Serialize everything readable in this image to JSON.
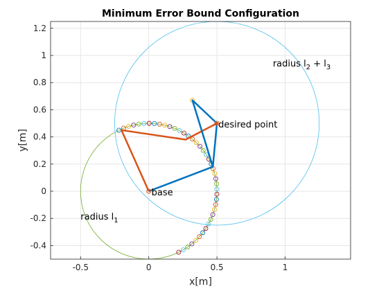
{
  "chart_data": {
    "type": "line",
    "title": "Minimum Error Bound Configuration",
    "xlabel": "x[m]",
    "ylabel": "y[m]",
    "xlim": [
      -0.72,
      1.48
    ],
    "ylim": [
      -0.5,
      1.25
    ],
    "grid": true,
    "xticks": [
      -0.5,
      0,
      0.5,
      1
    ],
    "xtick_labels": [
      "-0.5",
      "0",
      "0.5",
      "1"
    ],
    "yticks": [
      -0.4,
      -0.2,
      0,
      0.2,
      0.4,
      0.6,
      0.8,
      1,
      1.2
    ],
    "ytick_labels": [
      "-0.4",
      "-0.2",
      "0",
      "0.2",
      "0.4",
      "0.6",
      "0.8",
      "1",
      "1.2"
    ],
    "circles": [
      {
        "cx": 0,
        "cy": 0,
        "r": 0.5,
        "color": "#77ac30"
      },
      {
        "cx": 0.5,
        "cy": 0.5,
        "r": 0.75,
        "color": "#4dbeee"
      }
    ],
    "series": [
      {
        "points": [
          [
            0,
            0
          ],
          [
            -0.2,
            0.45
          ],
          [
            0.27,
            0.38
          ],
          [
            0.5,
            0.5
          ]
        ],
        "color": "#d95319"
      },
      {
        "points": [
          [
            0,
            0
          ],
          [
            0.47,
            0.18
          ],
          [
            0.5,
            0.5
          ],
          [
            0.32,
            0.67
          ],
          [
            0.47,
            0.18
          ]
        ],
        "color": "#0072bd"
      }
    ],
    "arc_markers": {
      "cx": 0,
      "cy": 0,
      "r": 0.5,
      "start_deg": 116,
      "end_deg": -64,
      "count": 42,
      "colors": [
        "#0072bd",
        "#d95319",
        "#edb120",
        "#7e2f8e",
        "#77ac30",
        "#4dbeee",
        "#a2142f"
      ]
    },
    "extra_markers": [
      {
        "x": 0.32,
        "y": 0.67,
        "color": "#edb120"
      }
    ],
    "star_marker": {
      "x": 0.5,
      "y": 0.5,
      "color": "#d95319"
    },
    "base_marker": {
      "x": 0,
      "y": 0,
      "color": "#d95319"
    },
    "annotations": {
      "base": {
        "text": "base",
        "x": 0.02,
        "y": -0.01
      },
      "desired": {
        "text": "desired point",
        "x": 0.51,
        "y": 0.49
      },
      "radius1": {
        "text": "radius l",
        "sub": "1",
        "x": -0.5,
        "y": -0.19
      },
      "radius23": {
        "text": "radius l",
        "sub1": "2",
        "mid": " + l",
        "sub2": "3",
        "x": 0.91,
        "y": 0.94
      }
    }
  }
}
